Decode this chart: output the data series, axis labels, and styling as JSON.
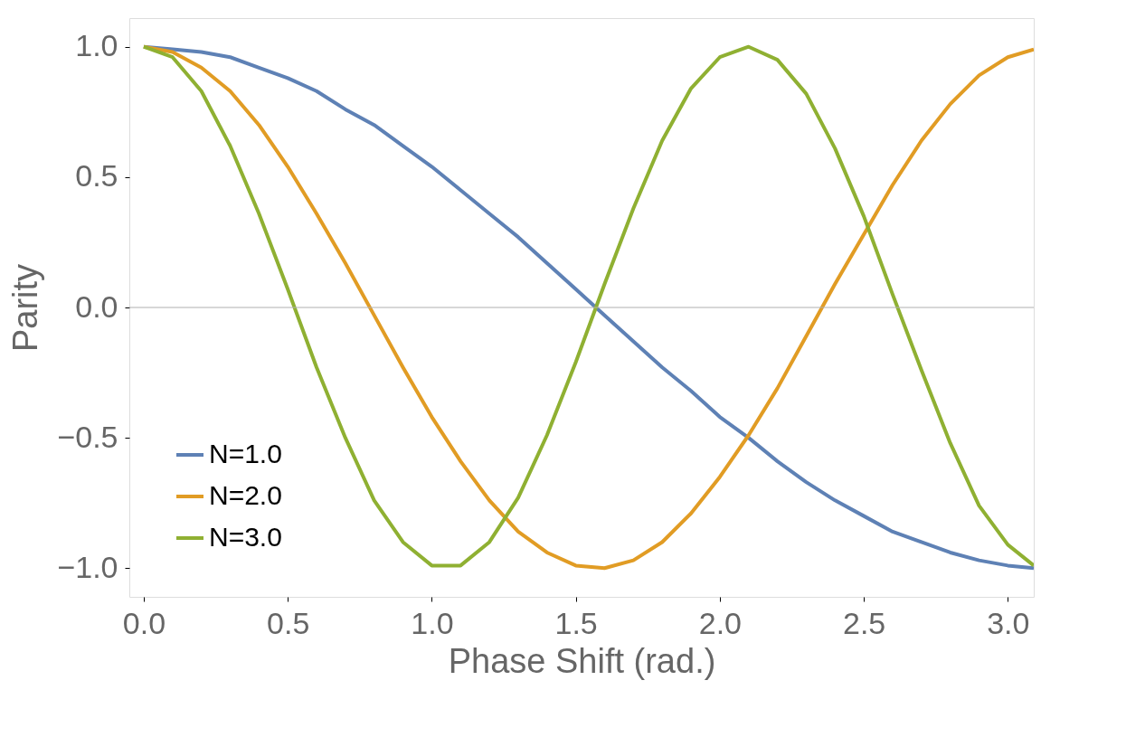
{
  "chart_data": {
    "type": "line",
    "xlabel": "Phase Shift (rad.)",
    "ylabel": "Parity",
    "x": [
      0,
      0.1,
      0.2,
      0.3,
      0.4,
      0.5,
      0.6,
      0.7,
      0.8,
      0.9,
      1.0,
      1.1,
      1.2,
      1.3,
      1.4,
      1.5,
      1.6,
      1.7,
      1.8,
      1.9,
      2.0,
      2.1,
      2.2,
      2.3,
      2.4,
      2.5,
      2.6,
      2.7,
      2.8,
      2.9,
      3.0,
      3.09
    ],
    "series": [
      {
        "name": "N=1.0",
        "color": "#5e81b5",
        "values": [
          1.0,
          0.99,
          0.98,
          0.96,
          0.92,
          0.88,
          0.83,
          0.76,
          0.7,
          0.62,
          0.54,
          0.45,
          0.36,
          0.27,
          0.17,
          0.07,
          -0.03,
          -0.13,
          -0.23,
          -0.32,
          -0.42,
          -0.5,
          -0.59,
          -0.67,
          -0.74,
          -0.8,
          -0.86,
          -0.9,
          -0.94,
          -0.97,
          -0.99,
          -1.0
        ]
      },
      {
        "name": "N=2.0",
        "color": "#e19c24",
        "values": [
          1.0,
          0.98,
          0.92,
          0.83,
          0.7,
          0.54,
          0.36,
          0.17,
          -0.03,
          -0.23,
          -0.42,
          -0.59,
          -0.74,
          -0.86,
          -0.94,
          -0.99,
          -1.0,
          -0.97,
          -0.9,
          -0.79,
          -0.65,
          -0.49,
          -0.31,
          -0.11,
          0.09,
          0.28,
          0.47,
          0.64,
          0.78,
          0.89,
          0.96,
          0.99
        ]
      },
      {
        "name": "N=3.0",
        "color": "#8fb032",
        "values": [
          1.0,
          0.96,
          0.83,
          0.62,
          0.36,
          0.07,
          -0.23,
          -0.5,
          -0.74,
          -0.9,
          -0.99,
          -0.99,
          -0.9,
          -0.73,
          -0.49,
          -0.21,
          0.09,
          0.38,
          0.64,
          0.84,
          0.96,
          1.0,
          0.95,
          0.82,
          0.61,
          0.35,
          0.05,
          -0.24,
          -0.52,
          -0.76,
          -0.91,
          -0.99
        ]
      }
    ],
    "xlim": [
      -0.05,
      3.09
    ],
    "ylim": [
      -1.11,
      1.11
    ],
    "xticks": [
      {
        "value": 0,
        "label": "0.0"
      },
      0.5,
      {
        "value": 1,
        "label": "1.0"
      },
      1.5,
      {
        "value": 2,
        "label": "2.0"
      },
      2.5,
      {
        "value": 3,
        "label": "3.0"
      }
    ],
    "yticks": [
      {
        "value": -1,
        "label": "−1.0"
      },
      {
        "value": -0.5,
        "label": "−0.5"
      },
      {
        "value": 0,
        "label": "0.0"
      },
      0.5,
      {
        "value": 1,
        "label": "1.0"
      }
    ],
    "ref_lines": [
      {
        "axis": "y",
        "value": 0,
        "label": null,
        "color": "#b0b0b0"
      }
    ],
    "legend": "bottom left",
    "grid": false
  }
}
